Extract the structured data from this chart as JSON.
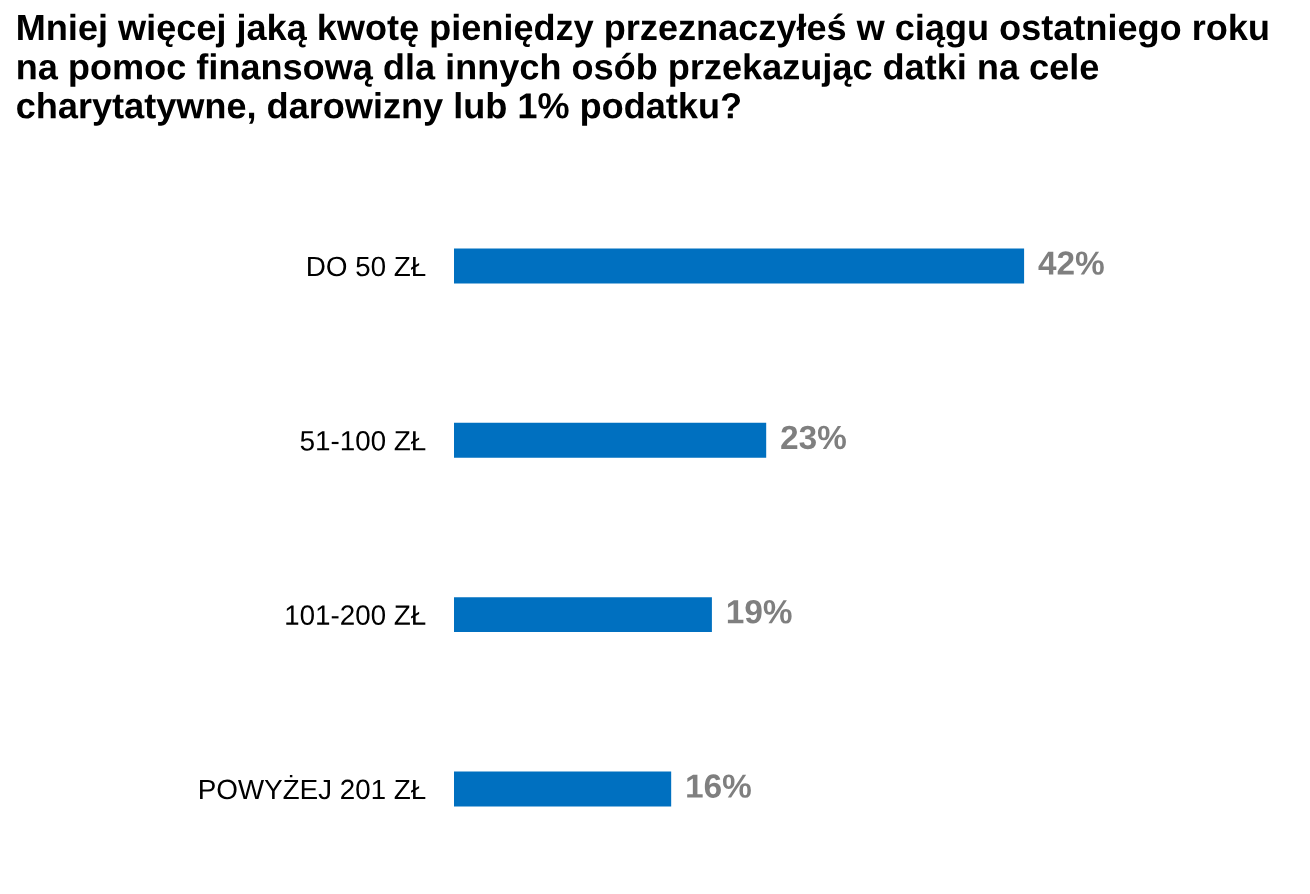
{
  "chart_data": {
    "type": "bar",
    "orientation": "horizontal",
    "title": "Mniej więcej jaką kwotę pieniędzy przeznaczyłeś w ciągu ostatniego roku na pomoc finansową dla innych osób przekazując datki na cele charytatywne, darowizny lub 1% podatku?",
    "categories": [
      "DO 50 ZŁ",
      "51-100 ZŁ",
      "101-200 ZŁ",
      "POWYŻEJ 201 ZŁ"
    ],
    "values": [
      42,
      23,
      19,
      16
    ],
    "value_labels": [
      "42%",
      "23%",
      "19%",
      "16%"
    ],
    "color": "#0070c0",
    "grid": false,
    "legend": false
  }
}
